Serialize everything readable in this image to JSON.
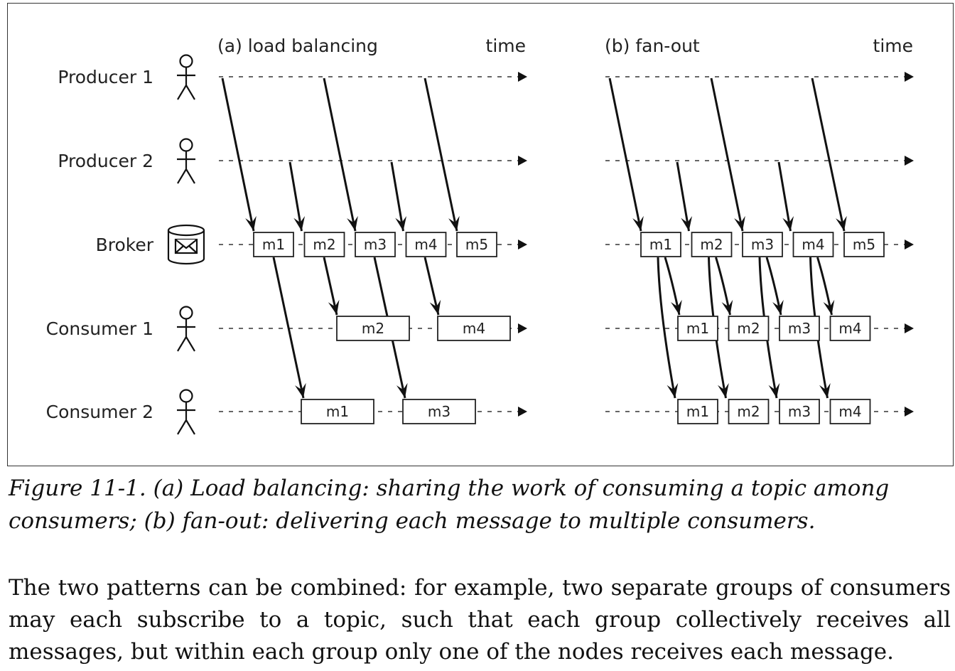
{
  "figure": {
    "panels": [
      {
        "id": "a",
        "title": "(a) load balancing",
        "axis_label": "time"
      },
      {
        "id": "b",
        "title": "(b) fan-out",
        "axis_label": "time"
      }
    ],
    "roles": [
      "Producer 1",
      "Producer 2",
      "Broker",
      "Consumer 1",
      "Consumer 2"
    ],
    "broker_messages": [
      "m1",
      "m2",
      "m3",
      "m4",
      "m5"
    ],
    "load_balancing": {
      "consumer1": [
        "m2",
        "m4"
      ],
      "consumer2": [
        "m1",
        "m3"
      ]
    },
    "fan_out": {
      "consumer1": [
        "m1",
        "m2",
        "m3",
        "m4"
      ],
      "consumer2": [
        "m1",
        "m2",
        "m3",
        "m4"
      ]
    },
    "icons": {
      "person": "person-icon",
      "broker": "envelope-icon"
    }
  },
  "caption": "Figure 11-1. (a) Load balancing: sharing the work of consuming a topic among consumers; (b) fan-out: delivering each message to multiple consumers.",
  "body_text": "The two patterns can be combined: for example, two separate groups of consumers may each subscribe to a topic, such that each group collectively receives all messages, but within each group only one of the nodes receives each message."
}
